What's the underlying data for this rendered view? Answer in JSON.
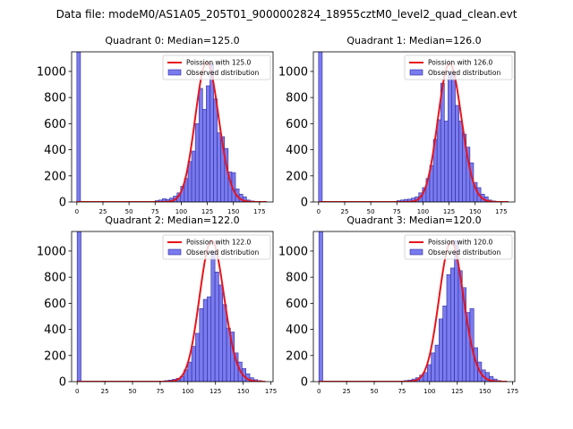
{
  "figure": {
    "suptitle": "Data file: modeM0/AS1A05_205T01_9000002824_18955cztM0_level2_quad_clean.evt"
  },
  "colors": {
    "bar_fill": "#7b7bf0",
    "bar_edge": "#2b2b9e",
    "poisson_line": "#e8141a"
  },
  "chart_data": [
    {
      "type": "bar",
      "title": "Quadrant 0: Median=125.0",
      "xlabel": "",
      "ylabel": "",
      "xlim": [
        -5,
        188
      ],
      "ylim": [
        0,
        1150
      ],
      "xticks": [
        0,
        25,
        50,
        75,
        100,
        125,
        150,
        175
      ],
      "yticks": [
        0,
        200,
        400,
        600,
        800,
        1000
      ],
      "bin_width": 3.5,
      "zero_bin": {
        "x": 0,
        "value": 1150
      },
      "bins": [
        [
          75,
          10
        ],
        [
          78.5,
          15
        ],
        [
          82,
          25
        ],
        [
          85.5,
          20
        ],
        [
          89,
          30
        ],
        [
          92.5,
          45
        ],
        [
          96,
          70
        ],
        [
          99.5,
          120
        ],
        [
          103,
          180
        ],
        [
          106.5,
          310
        ],
        [
          110,
          390
        ],
        [
          113.5,
          600
        ],
        [
          117,
          870
        ],
        [
          120.5,
          710
        ],
        [
          124,
          890
        ],
        [
          127.5,
          1060
        ],
        [
          131,
          790
        ],
        [
          134.5,
          530
        ],
        [
          138,
          500
        ],
        [
          141.5,
          410
        ],
        [
          145,
          230
        ],
        [
          148.5,
          225
        ],
        [
          152,
          100
        ],
        [
          155.5,
          60
        ],
        [
          159,
          40
        ],
        [
          162.5,
          15
        ],
        [
          166,
          8
        ]
      ],
      "poisson": {
        "label": "Poission with 125.0",
        "mean": 125.0,
        "x_range": [
          0,
          182
        ],
        "peak": 1070
      },
      "legend": {
        "line_label": "Poission with 125.0",
        "bar_label": "Observed distribution",
        "position": "top-right"
      }
    },
    {
      "type": "bar",
      "title": "Quadrant 1: Median=126.0",
      "xlabel": "",
      "ylabel": "",
      "xlim": [
        -5,
        188
      ],
      "ylim": [
        0,
        1150
      ],
      "xticks": [
        0,
        25,
        50,
        75,
        100,
        125,
        150,
        175
      ],
      "yticks": [
        0,
        200,
        400,
        600,
        800,
        1000
      ],
      "bin_width": 3.5,
      "zero_bin": {
        "x": 0,
        "value": 1150
      },
      "bins": [
        [
          75,
          10
        ],
        [
          78.5,
          15
        ],
        [
          82,
          20
        ],
        [
          85.5,
          22
        ],
        [
          89,
          30
        ],
        [
          92.5,
          40
        ],
        [
          96,
          70
        ],
        [
          99.5,
          110
        ],
        [
          103,
          180
        ],
        [
          106.5,
          280
        ],
        [
          110,
          480
        ],
        [
          113.5,
          630
        ],
        [
          117,
          910
        ],
        [
          120.5,
          620
        ],
        [
          124,
          1000
        ],
        [
          127.5,
          980
        ],
        [
          131,
          740
        ],
        [
          134.5,
          620
        ],
        [
          138,
          520
        ],
        [
          141.5,
          420
        ],
        [
          145,
          300
        ],
        [
          148.5,
          150
        ],
        [
          152,
          110
        ],
        [
          155.5,
          60
        ],
        [
          159,
          40
        ],
        [
          162.5,
          15
        ],
        [
          166,
          8
        ]
      ],
      "poisson": {
        "label": "Poission with 126.0",
        "mean": 126.0,
        "x_range": [
          0,
          182
        ],
        "peak": 1060
      },
      "legend": {
        "line_label": "Poission with 126.0",
        "bar_label": "Observed distribution",
        "position": "top-right"
      }
    },
    {
      "type": "bar",
      "title": "Quadrant 2: Median=122.0",
      "xlabel": "",
      "ylabel": "",
      "xlim": [
        -5,
        177
      ],
      "ylim": [
        0,
        1150
      ],
      "xticks": [
        0,
        25,
        50,
        75,
        100,
        125,
        150,
        175
      ],
      "yticks": [
        0,
        200,
        400,
        600,
        800,
        1000
      ],
      "bin_width": 3.5,
      "zero_bin": {
        "x": 0,
        "value": 1150
      },
      "bins": [
        [
          79,
          8
        ],
        [
          82.5,
          12
        ],
        [
          86,
          18
        ],
        [
          89.5,
          25
        ],
        [
          93,
          40
        ],
        [
          96.5,
          90
        ],
        [
          100,
          150
        ],
        [
          103.5,
          270
        ],
        [
          107,
          370
        ],
        [
          110.5,
          560
        ],
        [
          114,
          630
        ],
        [
          117.5,
          650
        ],
        [
          121,
          1000
        ],
        [
          124.5,
          840
        ],
        [
          128,
          740
        ],
        [
          131.5,
          590
        ],
        [
          135,
          410
        ],
        [
          138.5,
          380
        ],
        [
          142,
          220
        ],
        [
          145.5,
          150
        ],
        [
          149,
          100
        ],
        [
          152.5,
          60
        ],
        [
          156,
          30
        ],
        [
          159.5,
          15
        ],
        [
          163,
          8
        ]
      ],
      "poisson": {
        "label": "Poission with 122.0",
        "mean": 122.0,
        "x_range": [
          0,
          170
        ],
        "peak": 1080
      },
      "legend": {
        "line_label": "Poission with 122.0",
        "bar_label": "Observed distribution",
        "position": "top-right"
      }
    },
    {
      "type": "bar",
      "title": "Quadrant 3: Median=120.0",
      "xlabel": "",
      "ylabel": "",
      "xlim": [
        -5,
        177
      ],
      "ylim": [
        0,
        1150
      ],
      "xticks": [
        0,
        25,
        50,
        75,
        100,
        125,
        150,
        175
      ],
      "yticks": [
        0,
        200,
        400,
        600,
        800,
        1000
      ],
      "bin_width": 3.5,
      "zero_bin": {
        "x": 0,
        "value": 1150
      },
      "bins": [
        [
          77,
          8
        ],
        [
          80.5,
          12
        ],
        [
          84,
          20
        ],
        [
          87.5,
          30
        ],
        [
          91,
          50
        ],
        [
          94.5,
          70
        ],
        [
          98,
          130
        ],
        [
          101.5,
          220
        ],
        [
          105,
          280
        ],
        [
          108.5,
          480
        ],
        [
          112,
          580
        ],
        [
          115.5,
          820
        ],
        [
          119,
          870
        ],
        [
          122.5,
          1080
        ],
        [
          126,
          850
        ],
        [
          129.5,
          720
        ],
        [
          133,
          530
        ],
        [
          136.5,
          560
        ],
        [
          140,
          260
        ],
        [
          143.5,
          150
        ],
        [
          147,
          90
        ],
        [
          150.5,
          70
        ],
        [
          154,
          40
        ],
        [
          157.5,
          20
        ],
        [
          161,
          8
        ]
      ],
      "poisson": {
        "label": "Poission with 120.0",
        "mean": 120.0,
        "x_range": [
          0,
          170
        ],
        "peak": 1070
      },
      "legend": {
        "line_label": "Poission with 120.0",
        "bar_label": "Observed distribution",
        "position": "top-right"
      }
    }
  ]
}
